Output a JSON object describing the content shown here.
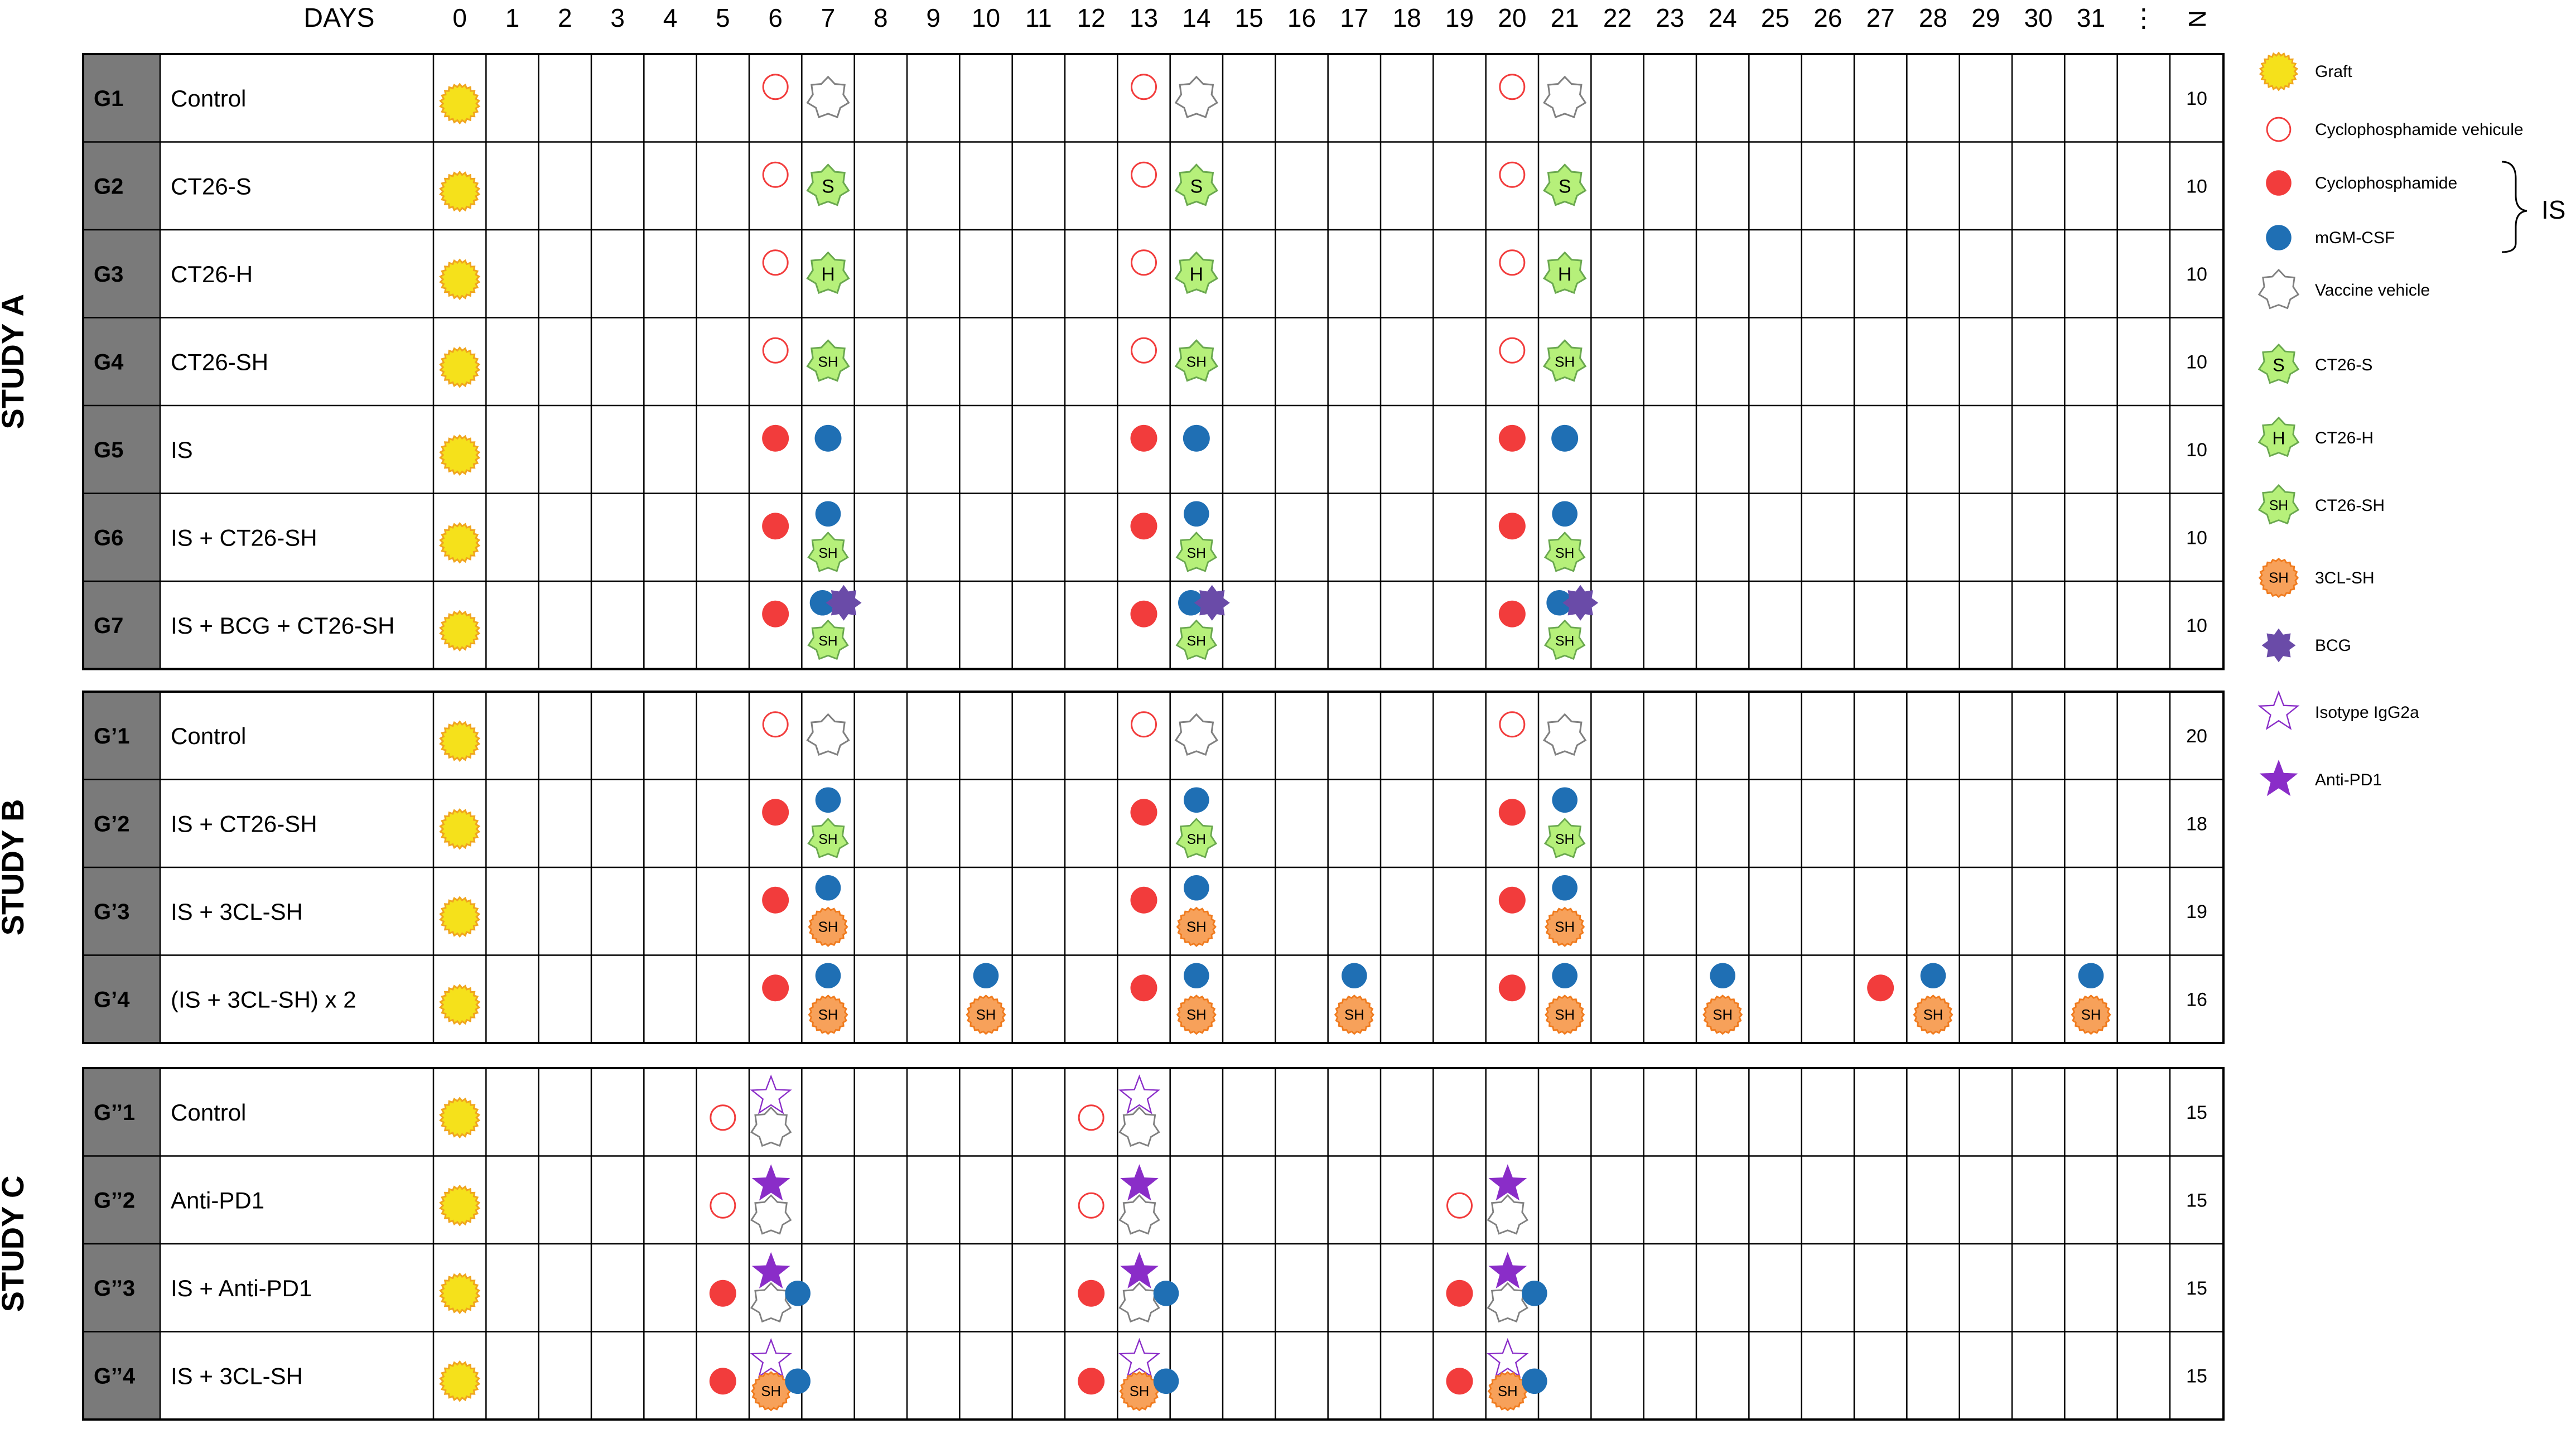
{
  "header": {
    "days_label": "DAYS",
    "day_labels": [
      "0",
      "1",
      "2",
      "3",
      "4",
      "5",
      "6",
      "7",
      "8",
      "9",
      "10",
      "11",
      "12",
      "13",
      "14",
      "15",
      "16",
      "17",
      "18",
      "19",
      "20",
      "21",
      "22",
      "23",
      "24",
      "25",
      "26",
      "27",
      "28",
      "29",
      "30",
      "31",
      "⋮"
    ],
    "n_label": "N"
  },
  "studies": [
    {
      "label": "STUDY A",
      "groups": [
        {
          "id": "G1",
          "name": "Control",
          "n": "10",
          "events": [
            {
              "day": 0,
              "marks": [
                "graft"
              ]
            },
            {
              "day": 6,
              "marks": [
                "cyclo-vehicle"
              ]
            },
            {
              "day": 7,
              "marks": [
                "vaccine-vehicle"
              ]
            },
            {
              "day": 13,
              "marks": [
                "cyclo-vehicle"
              ]
            },
            {
              "day": 14,
              "marks": [
                "vaccine-vehicle"
              ]
            },
            {
              "day": 20,
              "marks": [
                "cyclo-vehicle"
              ]
            },
            {
              "day": 21,
              "marks": [
                "vaccine-vehicle"
              ]
            }
          ]
        },
        {
          "id": "G2",
          "name": "CT26-S",
          "n": "10",
          "events": [
            {
              "day": 0,
              "marks": [
                "graft"
              ]
            },
            {
              "day": 6,
              "marks": [
                "cyclo-vehicle"
              ]
            },
            {
              "day": 7,
              "marks": [
                "ct26-s"
              ]
            },
            {
              "day": 13,
              "marks": [
                "cyclo-vehicle"
              ]
            },
            {
              "day": 14,
              "marks": [
                "ct26-s"
              ]
            },
            {
              "day": 20,
              "marks": [
                "cyclo-vehicle"
              ]
            },
            {
              "day": 21,
              "marks": [
                "ct26-s"
              ]
            }
          ]
        },
        {
          "id": "G3",
          "name": "CT26-H",
          "n": "10",
          "events": [
            {
              "day": 0,
              "marks": [
                "graft"
              ]
            },
            {
              "day": 6,
              "marks": [
                "cyclo-vehicle"
              ]
            },
            {
              "day": 7,
              "marks": [
                "ct26-h"
              ]
            },
            {
              "day": 13,
              "marks": [
                "cyclo-vehicle"
              ]
            },
            {
              "day": 14,
              "marks": [
                "ct26-h"
              ]
            },
            {
              "day": 20,
              "marks": [
                "cyclo-vehicle"
              ]
            },
            {
              "day": 21,
              "marks": [
                "ct26-h"
              ]
            }
          ]
        },
        {
          "id": "G4",
          "name": "CT26-SH",
          "n": "10",
          "events": [
            {
              "day": 0,
              "marks": [
                "graft"
              ]
            },
            {
              "day": 6,
              "marks": [
                "cyclo-vehicle"
              ]
            },
            {
              "day": 7,
              "marks": [
                "ct26-sh"
              ]
            },
            {
              "day": 13,
              "marks": [
                "cyclo-vehicle"
              ]
            },
            {
              "day": 14,
              "marks": [
                "ct26-sh"
              ]
            },
            {
              "day": 20,
              "marks": [
                "cyclo-vehicle"
              ]
            },
            {
              "day": 21,
              "marks": [
                "ct26-sh"
              ]
            }
          ]
        },
        {
          "id": "G5",
          "name": "IS",
          "n": "10",
          "events": [
            {
              "day": 0,
              "marks": [
                "graft"
              ]
            },
            {
              "day": 6,
              "marks": [
                "cyclo"
              ]
            },
            {
              "day": 7,
              "marks": [
                "mgm-csf"
              ]
            },
            {
              "day": 13,
              "marks": [
                "cyclo"
              ]
            },
            {
              "day": 14,
              "marks": [
                "mgm-csf"
              ]
            },
            {
              "day": 20,
              "marks": [
                "cyclo"
              ]
            },
            {
              "day": 21,
              "marks": [
                "mgm-csf"
              ]
            }
          ]
        },
        {
          "id": "G6",
          "name": "IS + CT26-SH",
          "n": "10",
          "events": [
            {
              "day": 0,
              "marks": [
                "graft"
              ]
            },
            {
              "day": 6,
              "marks": [
                "cyclo"
              ]
            },
            {
              "day": 7,
              "marks": [
                "mgm-csf",
                "ct26-sh"
              ]
            },
            {
              "day": 13,
              "marks": [
                "cyclo"
              ]
            },
            {
              "day": 14,
              "marks": [
                "mgm-csf",
                "ct26-sh"
              ]
            },
            {
              "day": 20,
              "marks": [
                "cyclo"
              ]
            },
            {
              "day": 21,
              "marks": [
                "mgm-csf",
                "ct26-sh"
              ]
            }
          ]
        },
        {
          "id": "G7",
          "name": "IS + BCG + CT26-SH",
          "n": "10",
          "events": [
            {
              "day": 0,
              "marks": [
                "graft"
              ]
            },
            {
              "day": 6,
              "marks": [
                "cyclo"
              ]
            },
            {
              "day": 7,
              "marks": [
                "mgm-csf",
                "bcg",
                "ct26-sh"
              ]
            },
            {
              "day": 13,
              "marks": [
                "cyclo"
              ]
            },
            {
              "day": 14,
              "marks": [
                "mgm-csf",
                "bcg",
                "ct26-sh"
              ]
            },
            {
              "day": 20,
              "marks": [
                "cyclo"
              ]
            },
            {
              "day": 21,
              "marks": [
                "mgm-csf",
                "bcg",
                "ct26-sh"
              ]
            }
          ]
        }
      ]
    },
    {
      "label": "STUDY B",
      "groups": [
        {
          "id": "G’1",
          "name": "Control",
          "n": "20",
          "events": [
            {
              "day": 0,
              "marks": [
                "graft"
              ]
            },
            {
              "day": 6,
              "marks": [
                "cyclo-vehicle"
              ]
            },
            {
              "day": 7,
              "marks": [
                "vaccine-vehicle"
              ]
            },
            {
              "day": 13,
              "marks": [
                "cyclo-vehicle"
              ]
            },
            {
              "day": 14,
              "marks": [
                "vaccine-vehicle"
              ]
            },
            {
              "day": 20,
              "marks": [
                "cyclo-vehicle"
              ]
            },
            {
              "day": 21,
              "marks": [
                "vaccine-vehicle"
              ]
            }
          ]
        },
        {
          "id": "G’2",
          "name": "IS + CT26-SH",
          "n": "18",
          "events": [
            {
              "day": 0,
              "marks": [
                "graft"
              ]
            },
            {
              "day": 6,
              "marks": [
                "cyclo"
              ]
            },
            {
              "day": 7,
              "marks": [
                "mgm-csf",
                "ct26-sh"
              ]
            },
            {
              "day": 13,
              "marks": [
                "cyclo"
              ]
            },
            {
              "day": 14,
              "marks": [
                "mgm-csf",
                "ct26-sh"
              ]
            },
            {
              "day": 20,
              "marks": [
                "cyclo"
              ]
            },
            {
              "day": 21,
              "marks": [
                "mgm-csf",
                "ct26-sh"
              ]
            }
          ]
        },
        {
          "id": "G’3",
          "name": "IS + 3CL-SH",
          "n": "19",
          "events": [
            {
              "day": 0,
              "marks": [
                "graft"
              ]
            },
            {
              "day": 6,
              "marks": [
                "cyclo"
              ]
            },
            {
              "day": 7,
              "marks": [
                "mgm-csf",
                "3cl-sh"
              ]
            },
            {
              "day": 13,
              "marks": [
                "cyclo"
              ]
            },
            {
              "day": 14,
              "marks": [
                "mgm-csf",
                "3cl-sh"
              ]
            },
            {
              "day": 20,
              "marks": [
                "cyclo"
              ]
            },
            {
              "day": 21,
              "marks": [
                "mgm-csf",
                "3cl-sh"
              ]
            }
          ]
        },
        {
          "id": "G’4",
          "name": "(IS + 3CL-SH) x 2",
          "n": "16",
          "events": [
            {
              "day": 0,
              "marks": [
                "graft"
              ]
            },
            {
              "day": 6,
              "marks": [
                "cyclo"
              ]
            },
            {
              "day": 7,
              "marks": [
                "mgm-csf",
                "3cl-sh"
              ]
            },
            {
              "day": 10,
              "marks": [
                "mgm-csf",
                "3cl-sh"
              ]
            },
            {
              "day": 13,
              "marks": [
                "cyclo"
              ]
            },
            {
              "day": 14,
              "marks": [
                "mgm-csf",
                "3cl-sh"
              ]
            },
            {
              "day": 17,
              "marks": [
                "mgm-csf",
                "3cl-sh"
              ]
            },
            {
              "day": 20,
              "marks": [
                "cyclo"
              ]
            },
            {
              "day": 21,
              "marks": [
                "mgm-csf",
                "3cl-sh"
              ]
            },
            {
              "day": 24,
              "marks": [
                "mgm-csf",
                "3cl-sh"
              ]
            },
            {
              "day": 27,
              "marks": [
                "cyclo"
              ]
            },
            {
              "day": 28,
              "marks": [
                "mgm-csf",
                "3cl-sh"
              ]
            },
            {
              "day": 31,
              "marks": [
                "mgm-csf",
                "3cl-sh"
              ]
            }
          ]
        }
      ]
    },
    {
      "label": "STUDY C",
      "groups": [
        {
          "id": "G’’1",
          "name": "Control",
          "n": "15",
          "events": [
            {
              "day": 0,
              "marks": [
                "graft"
              ]
            },
            {
              "day": 5,
              "marks": [
                "cyclo-vehicle"
              ]
            },
            {
              "day": 6,
              "marks": [
                "isotype",
                "vaccine-vehicle"
              ]
            },
            {
              "day": 12,
              "marks": [
                "cyclo-vehicle"
              ]
            },
            {
              "day": 13,
              "marks": [
                "isotype",
                "vaccine-vehicle"
              ]
            }
          ]
        },
        {
          "id": "G’’2",
          "name": "Anti-PD1",
          "n": "15",
          "events": [
            {
              "day": 0,
              "marks": [
                "graft"
              ]
            },
            {
              "day": 5,
              "marks": [
                "cyclo-vehicle"
              ]
            },
            {
              "day": 6,
              "marks": [
                "anti-pd1",
                "vaccine-vehicle"
              ]
            },
            {
              "day": 12,
              "marks": [
                "cyclo-vehicle"
              ]
            },
            {
              "day": 13,
              "marks": [
                "anti-pd1",
                "vaccine-vehicle"
              ]
            },
            {
              "day": 19,
              "marks": [
                "cyclo-vehicle"
              ]
            },
            {
              "day": 20,
              "marks": [
                "anti-pd1",
                "vaccine-vehicle"
              ]
            }
          ]
        },
        {
          "id": "G’’3",
          "name": "IS + Anti-PD1",
          "n": "15",
          "events": [
            {
              "day": 0,
              "marks": [
                "graft"
              ]
            },
            {
              "day": 5,
              "marks": [
                "cyclo"
              ]
            },
            {
              "day": 6,
              "marks": [
                "anti-pd1",
                "vaccine-vehicle",
                "mgm-csf"
              ]
            },
            {
              "day": 12,
              "marks": [
                "cyclo"
              ]
            },
            {
              "day": 13,
              "marks": [
                "anti-pd1",
                "vaccine-vehicle",
                "mgm-csf"
              ]
            },
            {
              "day": 19,
              "marks": [
                "cyclo"
              ]
            },
            {
              "day": 20,
              "marks": [
                "anti-pd1",
                "vaccine-vehicle",
                "mgm-csf"
              ]
            }
          ]
        },
        {
          "id": "G’’4",
          "name": "IS + 3CL-SH",
          "n": "15",
          "events": [
            {
              "day": 0,
              "marks": [
                "graft"
              ]
            },
            {
              "day": 5,
              "marks": [
                "cyclo"
              ]
            },
            {
              "day": 6,
              "marks": [
                "isotype",
                "3cl-sh",
                "mgm-csf"
              ]
            },
            {
              "day": 12,
              "marks": [
                "cyclo"
              ]
            },
            {
              "day": 13,
              "marks": [
                "isotype",
                "3cl-sh",
                "mgm-csf"
              ]
            },
            {
              "day": 19,
              "marks": [
                "cyclo"
              ]
            },
            {
              "day": 20,
              "marks": [
                "isotype",
                "3cl-sh",
                "mgm-csf"
              ]
            }
          ]
        }
      ]
    }
  ],
  "legend": {
    "items": [
      {
        "symbol": "graft",
        "label": "Graft"
      },
      {
        "symbol": "cyclo-vehicle",
        "label": "Cyclophosphamide vehicule"
      },
      {
        "symbol": "cyclo",
        "label": "Cyclophosphamide"
      },
      {
        "symbol": "mgm-csf",
        "label": "mGM-CSF"
      },
      {
        "symbol": "vaccine-vehicle",
        "label": "Vaccine vehicle"
      },
      {
        "symbol": "ct26-s",
        "label": "CT26-S"
      },
      {
        "symbol": "ct26-h",
        "label": "CT26-H"
      },
      {
        "symbol": "ct26-sh",
        "label": "CT26-SH"
      },
      {
        "symbol": "3cl-sh",
        "label": "3CL-SH"
      },
      {
        "symbol": "bcg",
        "label": "BCG"
      },
      {
        "symbol": "isotype",
        "label": "Isotype IgG2a"
      },
      {
        "symbol": "anti-pd1",
        "label": "Anti-PD1"
      }
    ],
    "brace_label": "IS"
  },
  "symbol_text": {
    "ct26-s": "S",
    "ct26-h": "H",
    "ct26-sh": "SH",
    "3cl-sh": "SH"
  },
  "colors": {
    "graft_fill": "#f5e11b",
    "graft_stroke": "#f0a51e",
    "cyclo": "#f23c3c",
    "mgm_csf": "#1f6fb4",
    "vaccine_green": "#b6f07a",
    "vaccine_green_stroke": "#6aa84f",
    "orange_fill": "#f7a15a",
    "orange_stroke": "#f07b1e",
    "bcg": "#6a4ba8",
    "anti_pd1": "#8a2dc8",
    "label_cell": "#7a7a7a",
    "grid": "#000000"
  }
}
